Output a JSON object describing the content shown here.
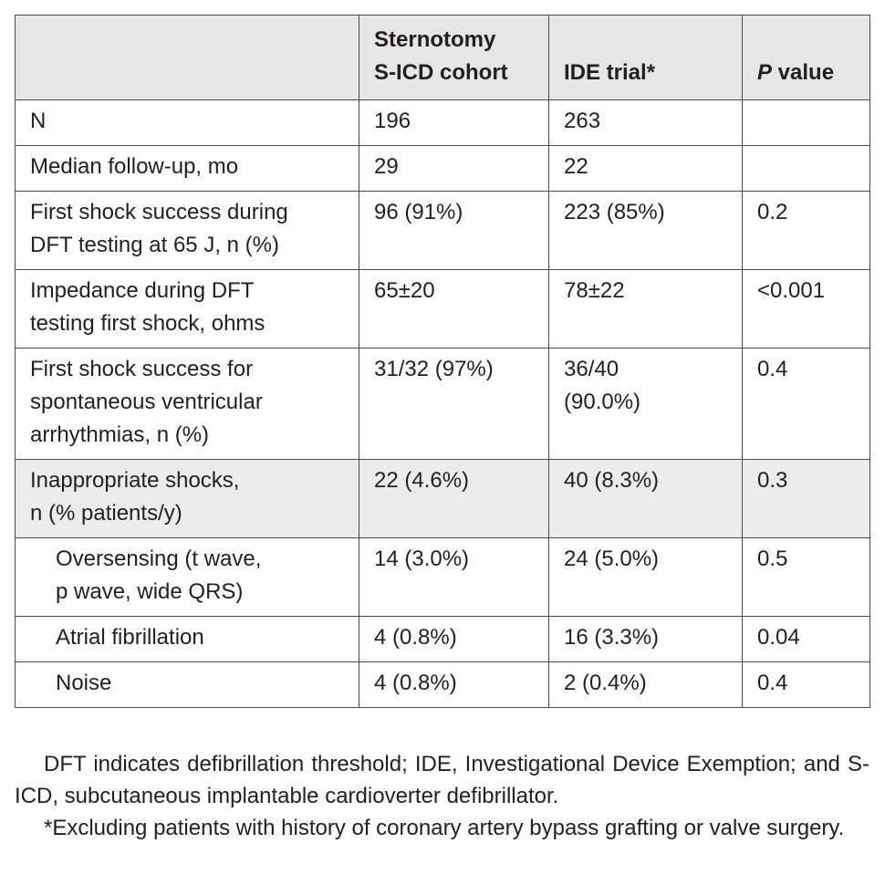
{
  "table": {
    "headers": {
      "col1": "",
      "col2_line1": "Sternotomy",
      "col2_line2": "S-ICD cohort",
      "col3": "IDE trial*",
      "col4_italic": "P",
      "col4_rest": " value"
    },
    "rows": [
      {
        "label": "N",
        "cohort": "196",
        "ide": "263",
        "p": ""
      },
      {
        "label": "Median follow-up, mo",
        "cohort": "29",
        "ide": "22",
        "p": ""
      },
      {
        "label_line1": "First shock success during",
        "label_line2": "DFT testing at 65 J, n (%)",
        "cohort": "96 (91%)",
        "ide": "223 (85%)",
        "p": "0.2"
      },
      {
        "label_line1": "Impedance during DFT",
        "label_line2": "testing first shock, ohms",
        "cohort": "65±20",
        "ide": "78±22",
        "p": "<0.001"
      },
      {
        "label_line1": "First shock success for",
        "label_line2": "spontaneous ventricular",
        "label_line3": "arrhythmias, n (%)",
        "cohort": "31/32 (97%)",
        "ide_line1": "36/40",
        "ide_line2": "(90.0%)",
        "p": "0.4"
      },
      {
        "label_line1": "Inappropriate shocks,",
        "label_line2": "n (% patients/y)",
        "cohort": "22 (4.6%)",
        "ide": "40 (8.3%)",
        "p": "0.3"
      },
      {
        "label_line1": "Oversensing (t wave,",
        "label_line2": "p wave, wide QRS)",
        "cohort": "14 (3.0%)",
        "ide": "24 (5.0%)",
        "p": "0.5"
      },
      {
        "label": "Atrial fibrillation",
        "cohort": "4 (0.8%)",
        "ide": "16 (3.3%)",
        "p": "0.04"
      },
      {
        "label": "Noise",
        "cohort": "4 (0.8%)",
        "ide": "2 (0.4%)",
        "p": "0.4"
      }
    ]
  },
  "footnotes": {
    "abbreviations": "DFT indicates defibrillation threshold; IDE, Investigational Device Exemption; and S-ICD, subcutaneous implantable cardioverter defibrillator.",
    "asterisk": "*Excluding patients with history of coronary artery bypass grafting or valve surgery."
  },
  "colors": {
    "header_bg": "#e6e6e6",
    "shaded_row_bg": "#ececec",
    "text": "#231f20",
    "border": "#4a4a4a"
  }
}
